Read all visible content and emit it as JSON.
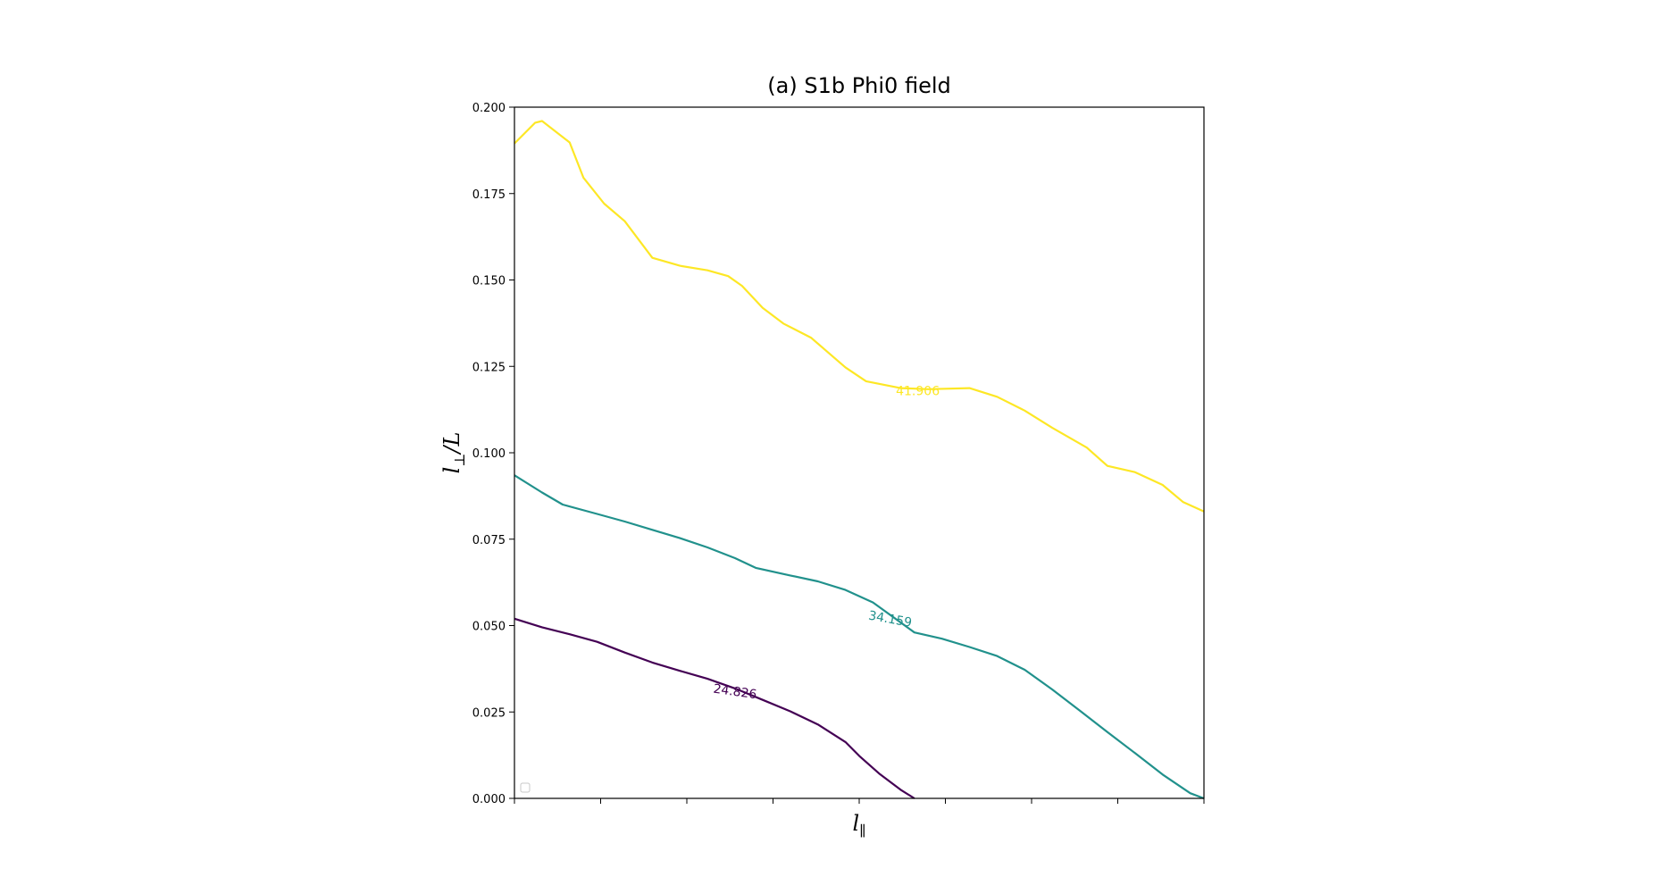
{
  "chart_data": {
    "type": "line",
    "title": "(a) S1b Phi0 field",
    "xlabel": "l",
    "xlabel_sub": "∥",
    "ylabel": "l",
    "ylabel_sub": "⊥",
    "ylabel_suffix": "/L",
    "xlim": [
      0,
      1
    ],
    "ylim": [
      0,
      0.2
    ],
    "y_ticks": [
      "0.000",
      "0.025",
      "0.050",
      "0.075",
      "0.100",
      "0.125",
      "0.150",
      "0.175",
      "0.200"
    ],
    "y_tick_values": [
      0,
      0.025,
      0.05,
      0.075,
      0.1,
      0.125,
      0.15,
      0.175,
      0.2
    ],
    "x_tick_values": [
      0,
      0.125,
      0.25,
      0.375,
      0.5,
      0.625,
      0.75,
      0.875,
      1.0
    ],
    "grid": false,
    "legend": "bottom-left (empty)",
    "series": [
      {
        "level": "24.826",
        "color": "#440154",
        "label_pos": [
          0.32,
          0.031
        ],
        "label_angle": 8,
        "x": [
          0,
          0.04,
          0.08,
          0.12,
          0.16,
          0.2,
          0.24,
          0.28,
          0.32,
          0.36,
          0.4,
          0.44,
          0.48,
          0.5,
          0.53,
          0.56,
          0.58
        ],
        "y": [
          0.052,
          0.0495,
          0.0475,
          0.0453,
          0.0422,
          0.0393,
          0.0369,
          0.0346,
          0.0318,
          0.0285,
          0.0252,
          0.0214,
          0.0163,
          0.0123,
          0.007,
          0.0025,
          0.0
        ]
      },
      {
        "level": "34.159",
        "color": "#21918c",
        "label_pos": [
          0.545,
          0.052
        ],
        "label_angle": 10,
        "x": [
          0,
          0.04,
          0.07,
          0.12,
          0.16,
          0.2,
          0.24,
          0.28,
          0.32,
          0.35,
          0.4,
          0.44,
          0.48,
          0.52,
          0.58,
          0.62,
          0.66,
          0.7,
          0.74,
          0.78,
          0.82,
          0.86,
          0.9,
          0.94,
          0.98,
          1.0
        ],
        "y": [
          0.0935,
          0.0885,
          0.085,
          0.0823,
          0.0801,
          0.0777,
          0.0753,
          0.0726,
          0.0695,
          0.0667,
          0.0645,
          0.0628,
          0.0603,
          0.0567,
          0.048,
          0.0462,
          0.0438,
          0.0412,
          0.0372,
          0.0315,
          0.0254,
          0.0192,
          0.0131,
          0.0069,
          0.0015,
          0.0
        ]
      },
      {
        "level": "41.906",
        "color": "#fde725",
        "label_pos": [
          0.585,
          0.118
        ],
        "label_angle": 0,
        "x": [
          0,
          0.03,
          0.04,
          0.08,
          0.1,
          0.13,
          0.16,
          0.2,
          0.24,
          0.28,
          0.31,
          0.33,
          0.36,
          0.39,
          0.43,
          0.48,
          0.51,
          0.56,
          0.6,
          0.66,
          0.7,
          0.74,
          0.78,
          0.83,
          0.86,
          0.9,
          0.94,
          0.97,
          1.0
        ],
        "y": [
          0.1895,
          0.1955,
          0.196,
          0.1898,
          0.1796,
          0.1721,
          0.167,
          0.1564,
          0.1541,
          0.1528,
          0.1511,
          0.1483,
          0.1419,
          0.1374,
          0.1333,
          0.1247,
          0.1207,
          0.1187,
          0.1184,
          0.1187,
          0.1162,
          0.1122,
          0.1072,
          0.1015,
          0.0962,
          0.0944,
          0.0907,
          0.0857,
          0.083
        ]
      }
    ]
  }
}
